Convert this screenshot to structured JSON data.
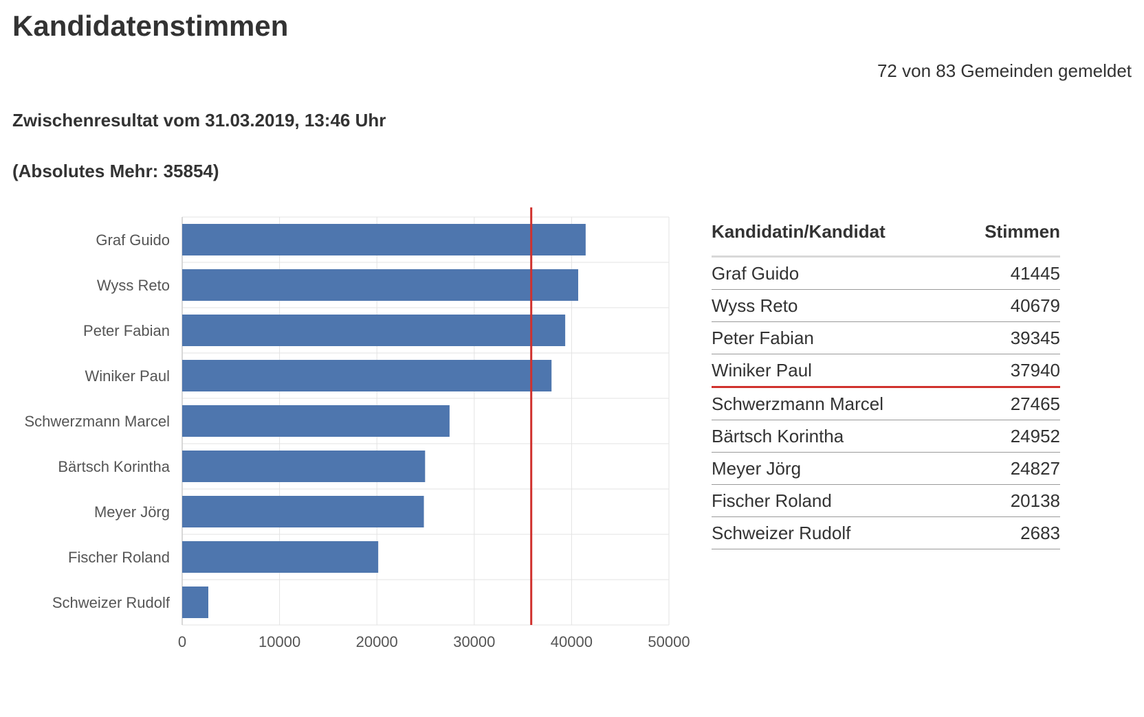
{
  "header": {
    "title": "Kandidatenstimmen",
    "reported": "72 von 83 Gemeinden gemeldet",
    "subtitle": "Zwischenresultat vom 31.03.2019, 13:46 Uhr",
    "absolute_majority": "(Absolutes Mehr: 35854)"
  },
  "table": {
    "col_name": "Kandidatin/Kandidat",
    "col_votes": "Stimmen",
    "rows": [
      {
        "name": "Graf Guido",
        "votes": "41445"
      },
      {
        "name": "Wyss Reto",
        "votes": "40679"
      },
      {
        "name": "Peter Fabian",
        "votes": "39345"
      },
      {
        "name": "Winiker Paul",
        "votes": "37940"
      },
      {
        "name": "Schwerzmann Marcel",
        "votes": "27465"
      },
      {
        "name": "Bärtsch Korintha",
        "votes": "24952"
      },
      {
        "name": "Meyer Jörg",
        "votes": "24827"
      },
      {
        "name": "Fischer Roland",
        "votes": "20138"
      },
      {
        "name": "Schweizer Rudolf",
        "votes": "2683"
      }
    ]
  },
  "chart_data": {
    "type": "bar",
    "orientation": "horizontal",
    "categories": [
      "Graf Guido",
      "Wyss Reto",
      "Peter Fabian",
      "Winiker Paul",
      "Schwerzmann Marcel",
      "Bärtsch Korintha",
      "Meyer Jörg",
      "Fischer Roland",
      "Schweizer Rudolf"
    ],
    "values": [
      41445,
      40679,
      39345,
      37940,
      27465,
      24952,
      24827,
      20138,
      2683
    ],
    "xlim": [
      0,
      50000
    ],
    "xticks": [
      0,
      10000,
      20000,
      30000,
      40000,
      50000
    ],
    "reference_line": 35854,
    "grid": true,
    "colors": {
      "bar": "#4e76ae",
      "reference": "#d0312d",
      "grid": "#e3e3e3",
      "axis": "#cccccc"
    }
  }
}
